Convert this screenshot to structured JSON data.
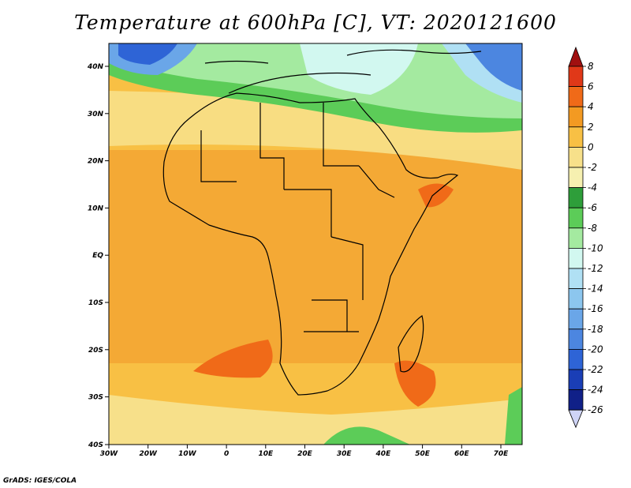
{
  "title": "Temperature at 600hPa [C], VT: 2020121600",
  "credit": "GrADS: IGES/COLA",
  "map": {
    "lat_labels": [
      "40N",
      "30N",
      "20N",
      "10N",
      "EQ",
      "10S",
      "20S",
      "30S",
      "40S"
    ],
    "lon_labels": [
      "30W",
      "20W",
      "10W",
      "0",
      "10E",
      "20E",
      "30E",
      "40E",
      "50E",
      "60E",
      "70E"
    ]
  },
  "colorbar": {
    "labels": [
      "8",
      "6",
      "4",
      "2",
      "0",
      "-2",
      "-4",
      "-6",
      "-8",
      "-10",
      "-12",
      "-14",
      "-16",
      "-18",
      "-20",
      "-22",
      "-24",
      "-26"
    ],
    "colors": [
      "#a01010",
      "#e03818",
      "#f06a18",
      "#f39a22",
      "#f8c044",
      "#f7e08a",
      "#f6f0b0",
      "#2e9e3a",
      "#5ccc58",
      "#a4eaa0",
      "#d2f8f0",
      "#b0e0f4",
      "#8cc6ee",
      "#6aa6e8",
      "#4c86e0",
      "#2e64d6",
      "#1a3eb6",
      "#102088",
      "#cfd4f6"
    ]
  }
}
